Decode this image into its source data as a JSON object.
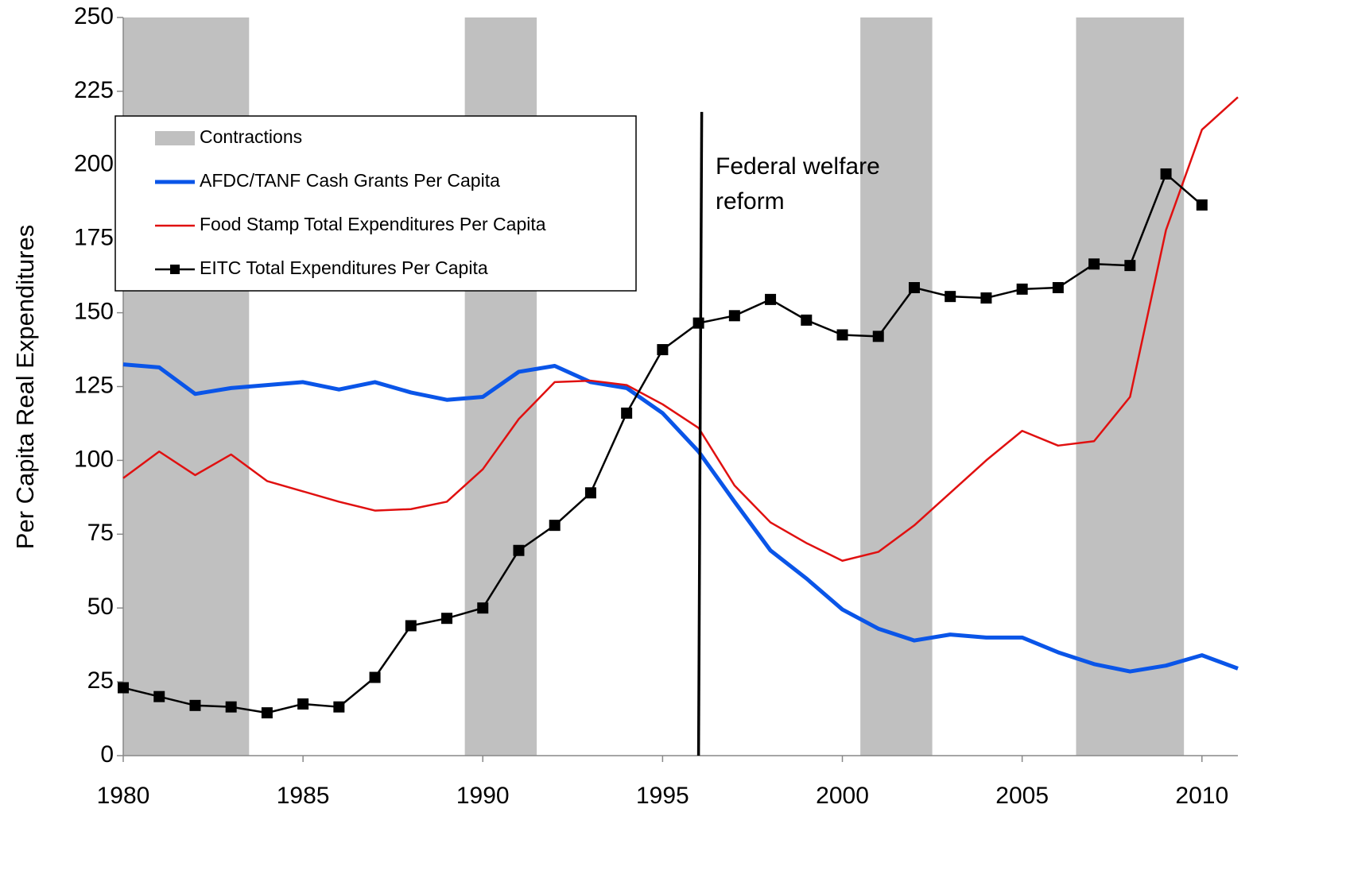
{
  "chart_data": {
    "type": "line",
    "ylabel": "Per Capita Real Expenditures",
    "x": [
      1980,
      1981,
      1982,
      1983,
      1984,
      1985,
      1986,
      1987,
      1988,
      1989,
      1990,
      1991,
      1992,
      1993,
      1994,
      1995,
      1996,
      1997,
      1998,
      1999,
      2000,
      2001,
      2002,
      2003,
      2004,
      2005,
      2006,
      2007,
      2008,
      2009,
      2010,
      2011
    ],
    "xlim": [
      1980,
      2011
    ],
    "xticks": [
      1980,
      1985,
      1990,
      1995,
      2000,
      2005,
      2010
    ],
    "ylim": [
      0,
      250
    ],
    "yticks": [
      0,
      25,
      50,
      75,
      100,
      125,
      150,
      175,
      200,
      225,
      250
    ],
    "contractions": {
      "name": "Contractions",
      "color": "#c0c0c0",
      "periods": [
        [
          1980,
          1983.5
        ],
        [
          1989.5,
          1991.5
        ],
        [
          2000.5,
          2002.5
        ],
        [
          2006.5,
          2009.5
        ]
      ]
    },
    "series": [
      {
        "name": "AFDC/TANF Cash Grants Per Capita",
        "color": "#0a55e8",
        "width": 5,
        "values": [
          132.5,
          131.5,
          122.5,
          124.5,
          125.5,
          126.5,
          124,
          126.5,
          123,
          120.5,
          121.5,
          130,
          132,
          126.5,
          124.5,
          116,
          103,
          86,
          69.5,
          60,
          49.5,
          43,
          39,
          41,
          40,
          40,
          35,
          31,
          28.5,
          30.5,
          34,
          29.5
        ]
      },
      {
        "name": "Food Stamp Total Expenditures Per Capita",
        "color": "#e01010",
        "width": 2.5,
        "values": [
          94,
          103,
          95,
          102,
          93,
          89.5,
          86,
          83,
          83.5,
          86,
          97,
          114,
          126.5,
          127,
          125.5,
          119,
          111,
          91.5,
          79,
          72,
          66,
          69,
          78,
          89,
          100,
          110,
          105,
          106.5,
          121.5,
          178,
          212,
          223
        ]
      },
      {
        "name": "EITC Total Expenditures Per Capita",
        "color": "#000000",
        "width": 2.5,
        "marker": "square",
        "values": [
          23,
          20,
          17,
          16.5,
          14.5,
          17.5,
          16.5,
          26.5,
          44,
          46.5,
          50,
          69.5,
          78,
          89,
          116,
          137.5,
          146.5,
          149,
          154.5,
          147.5,
          142.5,
          142,
          158.5,
          155.5,
          155,
          158,
          158.5,
          166.5,
          166,
          197,
          186.5,
          null
        ]
      }
    ],
    "reform": {
      "x": 1996,
      "top": 218,
      "color": "#000000",
      "annotation": [
        "Federal welfare",
        "reform"
      ]
    }
  }
}
